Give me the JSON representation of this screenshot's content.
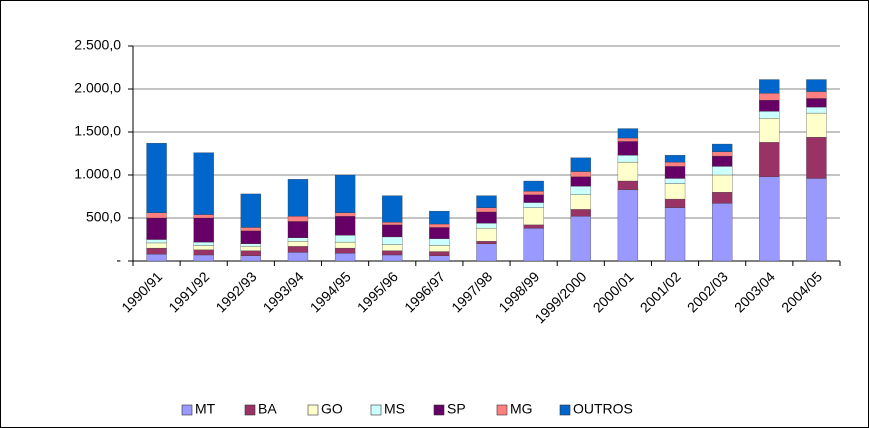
{
  "chart_data": {
    "type": "stacked-bar",
    "categories": [
      "1990/91",
      "1991/92",
      "1992/93",
      "1993/94",
      "1994/95",
      "1995/96",
      "1996/97",
      "1997/98",
      "1998/99",
      "1999/2000",
      "2000/01",
      "2001/02",
      "2002/03",
      "2003/04",
      "2004/05"
    ],
    "series": [
      {
        "name": "MT",
        "color": "#9999ff",
        "values": [
          80,
          70,
          60,
          100,
          90,
          70,
          60,
          200,
          380,
          520,
          830,
          620,
          670,
          980,
          960
        ]
      },
      {
        "name": "BA",
        "color": "#993366",
        "values": [
          70,
          60,
          60,
          70,
          60,
          50,
          50,
          30,
          40,
          80,
          100,
          100,
          130,
          400,
          480
        ]
      },
      {
        "name": "GO",
        "color": "#ffffcc",
        "values": [
          60,
          50,
          50,
          60,
          70,
          70,
          70,
          150,
          200,
          170,
          220,
          180,
          200,
          280,
          280
        ]
      },
      {
        "name": "MS",
        "color": "#ccffff",
        "values": [
          40,
          40,
          30,
          40,
          80,
          90,
          80,
          60,
          60,
          100,
          80,
          60,
          100,
          80,
          70
        ]
      },
      {
        "name": "SP",
        "color": "#660066",
        "values": [
          250,
          280,
          150,
          190,
          220,
          140,
          130,
          130,
          90,
          110,
          160,
          140,
          120,
          130,
          100
        ]
      },
      {
        "name": "MG",
        "color": "#ff8080",
        "values": [
          60,
          40,
          40,
          60,
          40,
          30,
          40,
          50,
          40,
          60,
          40,
          50,
          50,
          80,
          80
        ]
      },
      {
        "name": "OUTROS",
        "color": "#0066cc",
        "values": [
          810,
          720,
          390,
          430,
          440,
          310,
          150,
          140,
          120,
          160,
          110,
          80,
          90,
          160,
          140
        ]
      }
    ],
    "ylim": [
      0,
      2500
    ],
    "yticks": [
      {
        "value": 0,
        "label": "-"
      },
      {
        "value": 500,
        "label": "500,0"
      },
      {
        "value": 1000,
        "label": "1.000,0"
      },
      {
        "value": 1500,
        "label": "1.500,0"
      },
      {
        "value": 2000,
        "label": "2.000,0"
      },
      {
        "value": 2500,
        "label": "2.500,0"
      }
    ],
    "grid": true
  }
}
